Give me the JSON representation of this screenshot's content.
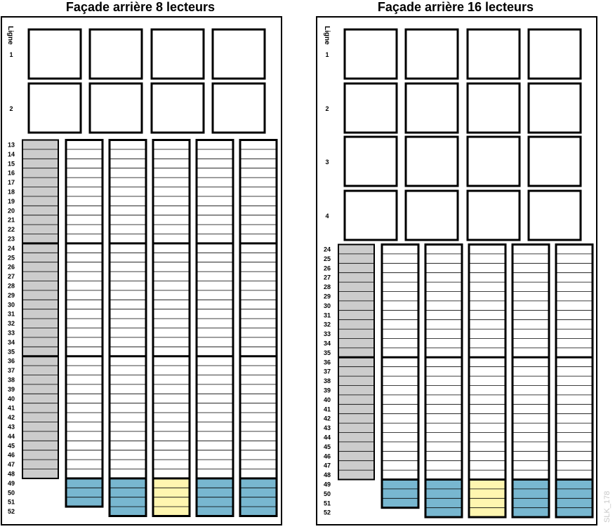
{
  "panels": [
    {
      "title": "Façade arrière 8 lecteurs",
      "row_header": "Ligne",
      "drive_bay_rows": [
        "1",
        "2"
      ],
      "slot_rows": [
        "13",
        "14",
        "15",
        "16",
        "17",
        "18",
        "19",
        "20",
        "21",
        "22",
        "23",
        "24",
        "25",
        "26",
        "27",
        "28",
        "29",
        "30",
        "31",
        "32",
        "33",
        "34",
        "35",
        "36",
        "37",
        "38",
        "39",
        "40",
        "41",
        "42",
        "43",
        "44",
        "45",
        "46",
        "47",
        "48",
        "49",
        "50",
        "51",
        "52"
      ]
    },
    {
      "title": "Façade arrière 16 lecteurs",
      "row_header": "Ligne",
      "drive_bay_rows": [
        "1",
        "2",
        "3",
        "4"
      ],
      "slot_rows": [
        "24",
        "25",
        "26",
        "27",
        "28",
        "29",
        "30",
        "31",
        "32",
        "33",
        "34",
        "35",
        "36",
        "37",
        "38",
        "39",
        "40",
        "41",
        "42",
        "43",
        "44",
        "45",
        "46",
        "47",
        "48",
        "49",
        "50",
        "51",
        "52"
      ]
    }
  ],
  "watermark": "SLK_178",
  "colors": {
    "reserved_column": "#cccccc",
    "blue_slots": "#78b7d0",
    "yellow_slots": "#fff6b0",
    "outline": "#000000"
  }
}
